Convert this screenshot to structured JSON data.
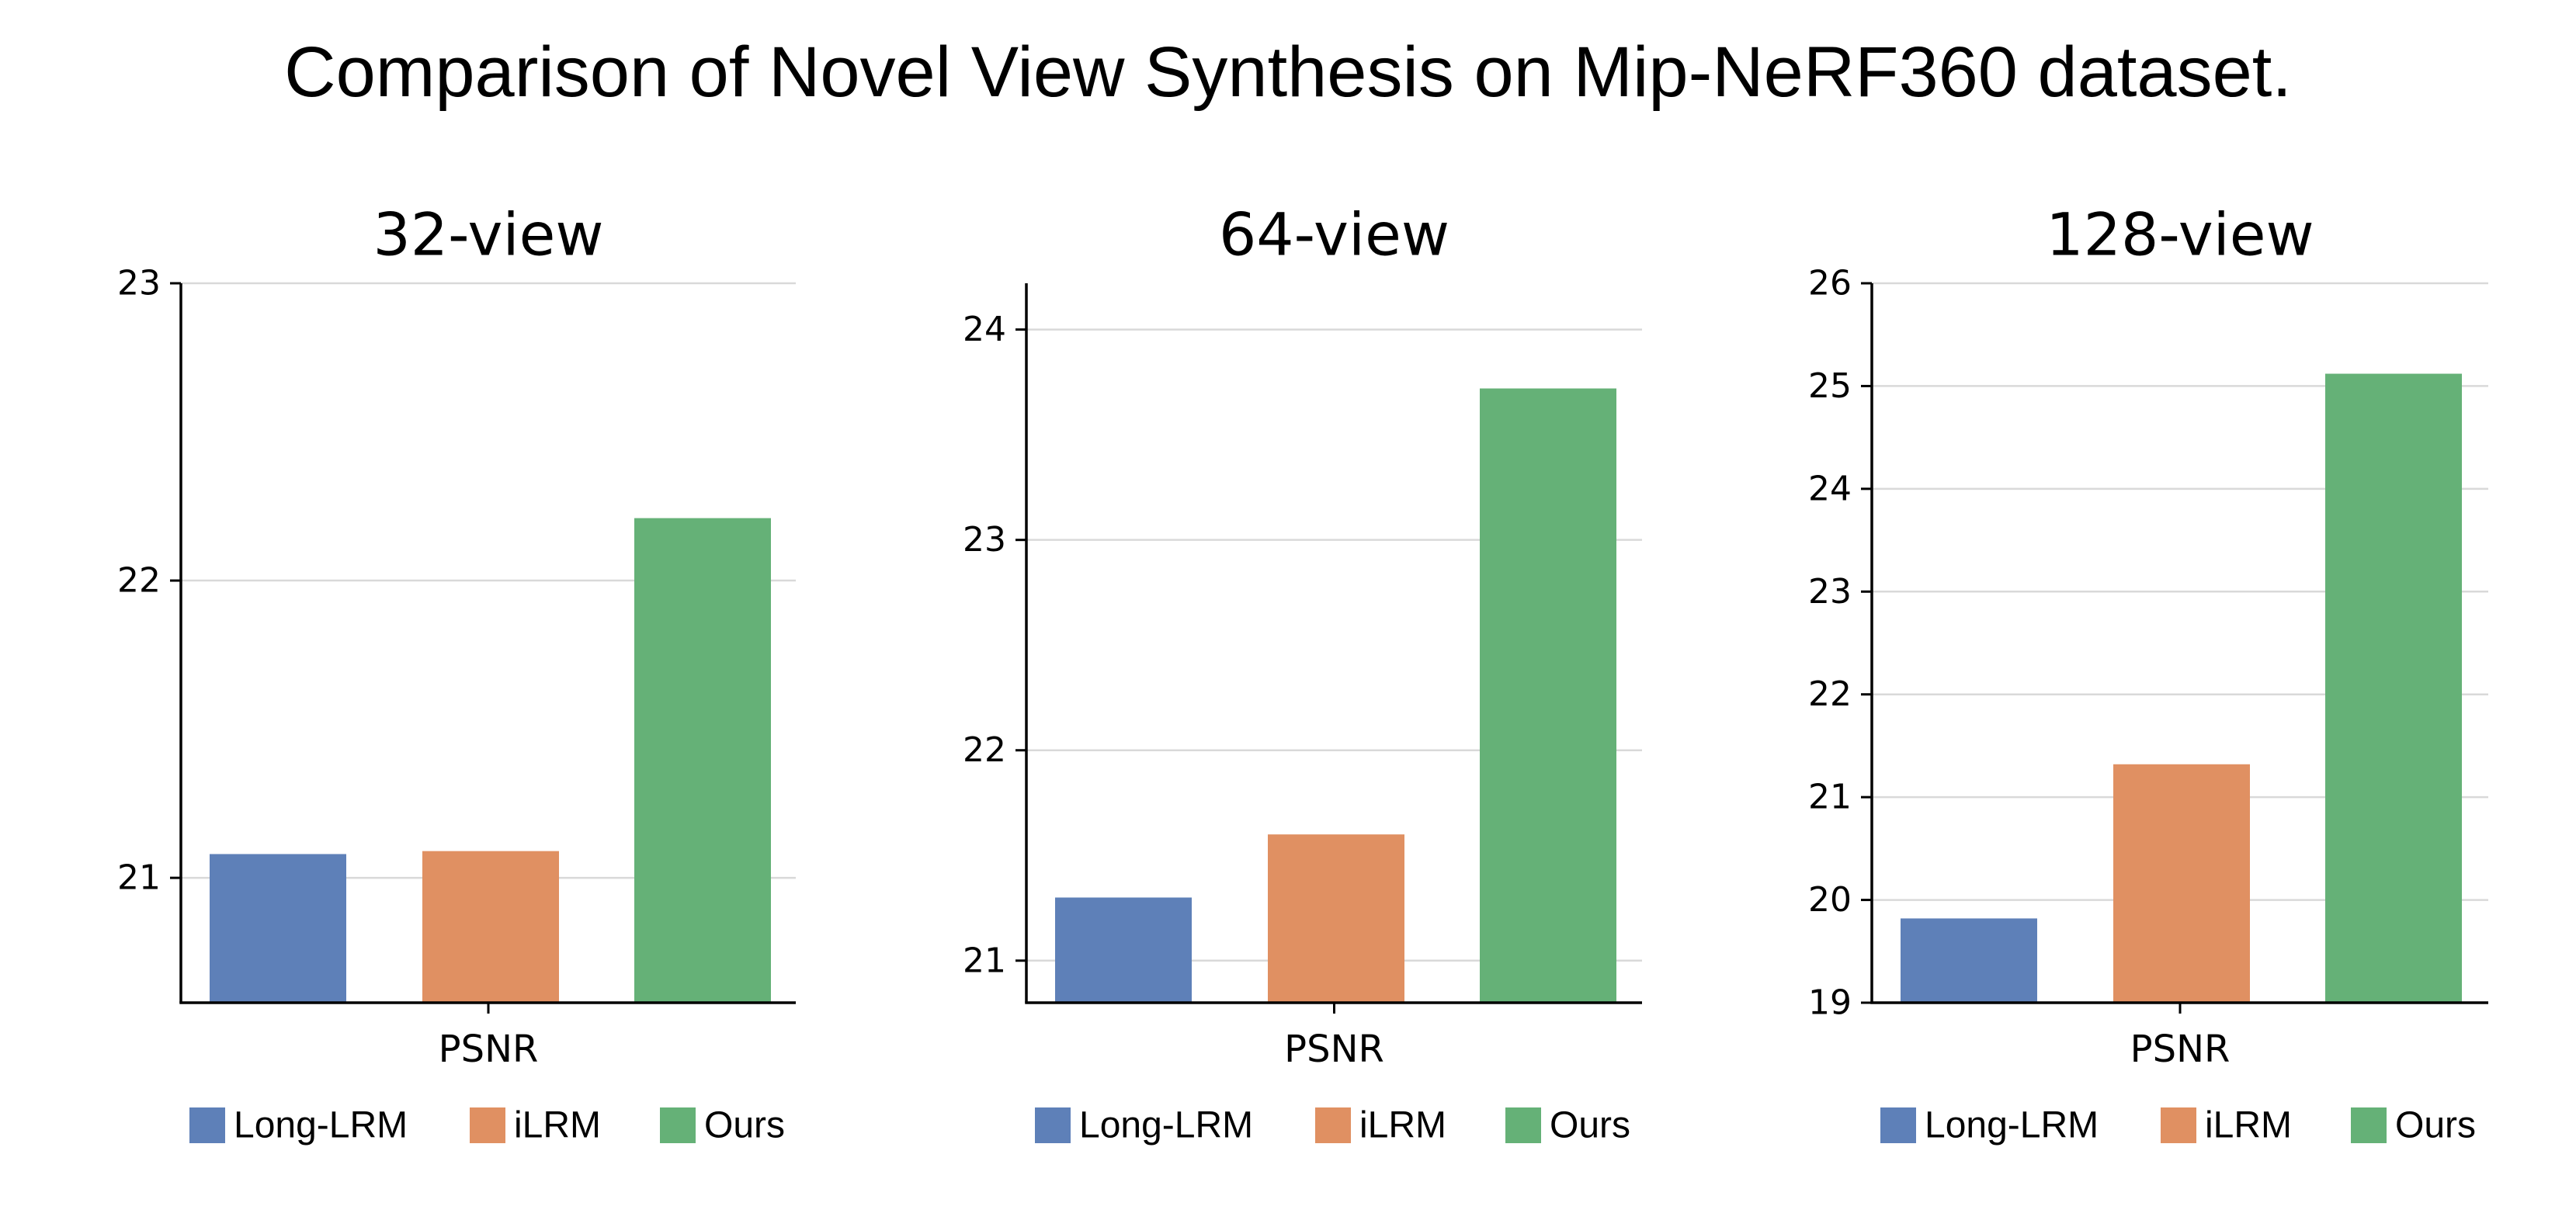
{
  "title": "Comparison of Novel View Synthesis on Mip-NeRF360 dataset.",
  "colors": {
    "Long-LRM": "#5e80b8",
    "iLRM": "#e09062",
    "Ours": "#65b177",
    "grid": "#d9d9d9",
    "axis": "#000000"
  },
  "chart_data": [
    {
      "type": "bar",
      "title": "32-view",
      "xlabel": "PSNR",
      "ylabel": "",
      "categories": [
        "PSNR"
      ],
      "series": [
        {
          "name": "Long-LRM",
          "values": [
            21.08
          ]
        },
        {
          "name": "iLRM",
          "values": [
            21.09
          ]
        },
        {
          "name": "Ours",
          "values": [
            22.21
          ]
        }
      ],
      "ylim": [
        20.58,
        23.0
      ],
      "yticks": [
        21,
        22,
        23
      ],
      "grid": true,
      "legend": "bottom"
    },
    {
      "type": "bar",
      "title": "64-view",
      "xlabel": "PSNR",
      "ylabel": "",
      "categories": [
        "PSNR"
      ],
      "series": [
        {
          "name": "Long-LRM",
          "values": [
            21.3
          ]
        },
        {
          "name": "iLRM",
          "values": [
            21.6
          ]
        },
        {
          "name": "Ours",
          "values": [
            23.72
          ]
        }
      ],
      "ylim": [
        20.8,
        24.22
      ],
      "yticks": [
        21,
        22,
        23,
        24
      ],
      "grid": true,
      "legend": "bottom"
    },
    {
      "type": "bar",
      "title": "128-view",
      "xlabel": "PSNR",
      "ylabel": "",
      "categories": [
        "PSNR"
      ],
      "series": [
        {
          "name": "Long-LRM",
          "values": [
            19.82
          ]
        },
        {
          "name": "iLRM",
          "values": [
            21.32
          ]
        },
        {
          "name": "Ours",
          "values": [
            25.12
          ]
        }
      ],
      "ylim": [
        19.0,
        26.0
      ],
      "yticks": [
        19,
        20,
        21,
        22,
        23,
        24,
        25,
        26
      ],
      "grid": true,
      "legend": "bottom"
    }
  ]
}
